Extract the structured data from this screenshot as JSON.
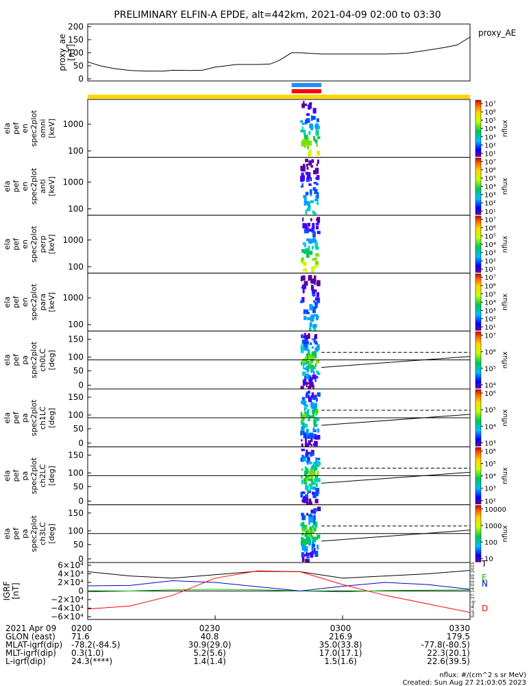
{
  "title": "PRELIMINARY ELFIN-A EPDE, alt=442km, 2021-04-09 02:00 to 03:30",
  "ae_panel": {
    "label": "proxy_AE",
    "ylabel": [
      "proxy_ae",
      "[nT]"
    ],
    "yticks": [
      "200",
      "150",
      "100",
      "50",
      "0"
    ]
  },
  "panels": [
    {
      "id": "omni",
      "ylabel": [
        "ela",
        "pef",
        "en",
        "spec2plot",
        "omni",
        "[keV]"
      ],
      "yticks": [
        "1000",
        "100"
      ],
      "colorbar_label": "nflux",
      "colorbar_ticks": [
        "10⁷",
        "10⁶",
        "10⁵",
        "10⁴",
        "10³",
        "10²",
        "10¹"
      ]
    },
    {
      "id": "anti",
      "ylabel": [
        "ela",
        "pef",
        "en",
        "spec2plot",
        "anti",
        "[keV]"
      ],
      "yticks": [
        "1000",
        "100"
      ],
      "colorbar_label": "nflux",
      "colorbar_ticks": [
        "10⁷",
        "10⁶",
        "10⁵",
        "10⁴",
        "10³",
        "10²",
        "10¹"
      ]
    },
    {
      "id": "perp",
      "ylabel": [
        "ela",
        "pef",
        "en",
        "spec2plot",
        "perp",
        "[keV]"
      ],
      "yticks": [
        "1000",
        "100"
      ],
      "colorbar_label": "nflux",
      "colorbar_ticks": [
        "10⁷",
        "10⁶",
        "10⁵",
        "10⁴",
        "10³",
        "10²",
        "10¹"
      ]
    },
    {
      "id": "para",
      "ylabel": [
        "ela",
        "pef",
        "en",
        "spec2plot",
        "para",
        "[keV]"
      ],
      "yticks": [
        "1000",
        "100"
      ],
      "colorbar_label": "nflux",
      "colorbar_ticks": [
        "10⁷",
        "10⁶",
        "10⁵",
        "10⁴",
        "10³",
        "10²",
        "10¹"
      ]
    },
    {
      "id": "ch0LC",
      "ylabel": [
        "ela",
        "pef",
        "pa",
        "spec2plot",
        "ch0LC",
        "[deg]"
      ],
      "yticks": [
        "150",
        "100",
        "50",
        "0"
      ],
      "colorbar_label": "nflux",
      "colorbar_ticks": [
        "10⁷",
        "10⁶",
        "10⁵",
        "10⁴"
      ]
    },
    {
      "id": "ch1LC",
      "ylabel": [
        "ela",
        "pef",
        "pa",
        "spec2plot",
        "ch1LC",
        "[deg]"
      ],
      "yticks": [
        "150",
        "100",
        "50",
        "0"
      ],
      "colorbar_label": "nflux",
      "colorbar_ticks": [
        "10⁶",
        "10⁵",
        "10⁴",
        "10³"
      ]
    },
    {
      "id": "ch2LC",
      "ylabel": [
        "ela",
        "pef",
        "pa",
        "spec2plot",
        "ch2LC",
        "[deg]"
      ],
      "yticks": [
        "150",
        "100",
        "50",
        "0"
      ],
      "colorbar_label": "nflux",
      "colorbar_ticks": [
        "10⁶",
        "10⁵",
        "10⁴",
        "10³",
        "10²"
      ]
    },
    {
      "id": "ch3LC",
      "ylabel": [
        "ela",
        "pef",
        "pa",
        "spec2plot",
        "ch3LC",
        "[deg]"
      ],
      "yticks": [
        "150",
        "100",
        "50",
        "0"
      ],
      "colorbar_label": "nflux",
      "colorbar_ticks": [
        "10000",
        "1000",
        "100",
        "10"
      ]
    }
  ],
  "igrf_panel": {
    "ylabel": [
      "IGRF",
      "[nT]"
    ],
    "yticks": [
      "6×10⁴",
      "4×10⁴",
      "2×10⁴",
      "0",
      "−2×10⁴",
      "−4×10⁴",
      "−6×10⁴"
    ],
    "legend": [
      "T",
      "E",
      "N",
      "D"
    ],
    "stamp": "Sun Aug 27 14:03:05 2023"
  },
  "footer_rows": [
    {
      "label": "2021 Apr 09",
      "values": [
        "0200",
        "0230",
        "0300",
        "0330"
      ]
    },
    {
      "label": "GLON (east)",
      "values": [
        "71.6",
        "40.8",
        "216.9",
        "179.5"
      ]
    },
    {
      "label": "MLAT-igrf(dip)",
      "values": [
        "-78.2(-84.5)",
        "30.9(29.0)",
        "35.0(33.8)",
        "-77.8(-80.5)"
      ]
    },
    {
      "label": "MLT-igrf(dip)",
      "values": [
        "0.3(1.0)",
        "5.2(5.6)",
        "17.0(17.1)",
        "22.3(20.1)"
      ]
    },
    {
      "label": "L-igrf(dip)",
      "values": [
        "24.3(****)",
        "1.4(1.4)",
        "1.5(1.6)",
        "22.6(39.5)"
      ]
    }
  ],
  "notes": {
    "units": "nflux: #/(cm^2 s sr MeV)",
    "created": "Created: Sun Aug 27 21:03:05 2023"
  },
  "colors": {
    "status_bar": "#ffd700",
    "science_blue": "#1e90ff",
    "science_red": "#ff0000",
    "igrf_T": "#000000",
    "igrf_E": "#00c000",
    "igrf_N": "#0000cc",
    "igrf_D": "#ff0000"
  },
  "chart_data": [
    {
      "type": "line",
      "series": [
        {
          "name": "proxy_AE",
          "x": [
            "02:00",
            "02:03",
            "02:06",
            "02:10",
            "02:14",
            "02:18",
            "02:20",
            "02:24",
            "02:27",
            "02:30",
            "02:35",
            "02:40",
            "02:43",
            "02:45",
            "02:48",
            "02:50",
            "02:55",
            "03:00",
            "03:05",
            "03:10",
            "03:15",
            "03:20",
            "03:24",
            "03:27",
            "03:30"
          ],
          "values": [
            65,
            50,
            40,
            32,
            30,
            30,
            33,
            32,
            33,
            45,
            55,
            55,
            57,
            70,
            100,
            100,
            95,
            95,
            95,
            95,
            98,
            110,
            120,
            130,
            160
          ]
        }
      ],
      "ylim": [
        0,
        210
      ]
    },
    {
      "type": "heatmap",
      "panel": "omni",
      "yscale": "log",
      "ylim": [
        50,
        7000
      ],
      "active_time": [
        "02:50",
        "02:55"
      ]
    },
    {
      "type": "heatmap",
      "panel": "anti",
      "yscale": "log",
      "ylim": [
        50,
        7000
      ],
      "active_time": [
        "02:50",
        "02:55"
      ]
    },
    {
      "type": "heatmap",
      "panel": "perp",
      "yscale": "log",
      "ylim": [
        50,
        7000
      ],
      "active_time": [
        "02:50",
        "02:55"
      ]
    },
    {
      "type": "heatmap",
      "panel": "para",
      "yscale": "log",
      "ylim": [
        50,
        7000
      ],
      "active_time": [
        "02:50",
        "02:55"
      ]
    },
    {
      "type": "heatmap",
      "panel": "ch0LC",
      "ylim": [
        0,
        180
      ],
      "active_time": [
        "02:50",
        "02:55"
      ]
    },
    {
      "type": "heatmap",
      "panel": "ch1LC",
      "ylim": [
        0,
        180
      ],
      "active_time": [
        "02:50",
        "02:55"
      ]
    },
    {
      "type": "heatmap",
      "panel": "ch2LC",
      "ylim": [
        0,
        180
      ],
      "active_time": [
        "02:50",
        "02:55"
      ]
    },
    {
      "type": "heatmap",
      "panel": "ch3LC",
      "ylim": [
        0,
        180
      ],
      "active_time": [
        "02:50",
        "02:55"
      ]
    },
    {
      "type": "line",
      "x": [
        "02:00",
        "02:10",
        "02:20",
        "02:30",
        "02:40",
        "02:50",
        "03:00",
        "03:10",
        "03:20",
        "03:30"
      ],
      "series": [
        {
          "name": "T",
          "values": [
            45000,
            35000,
            30000,
            38000,
            46000,
            45000,
            30000,
            35000,
            40000,
            48000
          ]
        },
        {
          "name": "E",
          "values": [
            -2000,
            0,
            3000,
            4000,
            3000,
            0,
            -2000,
            1000,
            2000,
            3000
          ]
        },
        {
          "name": "N",
          "values": [
            12000,
            13000,
            24000,
            20000,
            10000,
            0,
            11000,
            20000,
            15000,
            4000
          ]
        },
        {
          "name": "D",
          "values": [
            -42000,
            -35000,
            -10000,
            30000,
            47000,
            45000,
            15000,
            -10000,
            -30000,
            -50000
          ]
        }
      ],
      "ylim": [
        -60000,
        60000
      ]
    }
  ]
}
